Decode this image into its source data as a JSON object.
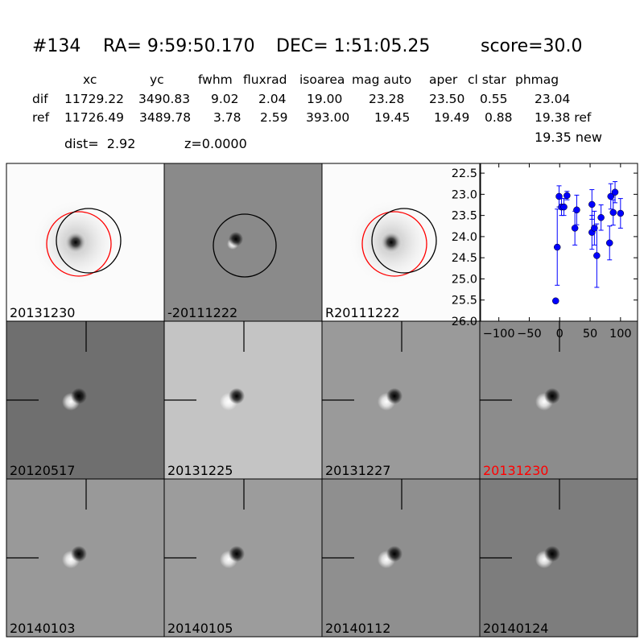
{
  "header": {
    "id": "#134",
    "ra": "RA= 9:59:50.170",
    "dec": "DEC= 1:51:05.25",
    "score": "score=30.0"
  },
  "table": {
    "columns": [
      "xc",
      "yc",
      "fwhm",
      "fluxrad",
      "isoarea",
      "mag auto",
      "aper",
      "cl star",
      "phmag"
    ],
    "rows": [
      {
        "name": "dif",
        "values": [
          "11729.22",
          "3490.83",
          "9.02",
          "2.04",
          "19.00",
          "23.28",
          "23.50",
          "0.55",
          "23.04"
        ]
      },
      {
        "name": "ref",
        "values": [
          "11726.49",
          "3489.78",
          "3.78",
          "2.59",
          "393.00",
          "19.45",
          "19.49",
          "0.88",
          "19.38 ref"
        ]
      }
    ],
    "new_phmag": "19.35 new"
  },
  "info": {
    "dist": "dist=  2.92",
    "z": "z=0.0000"
  },
  "panels": [
    {
      "label": "20131230"
    },
    {
      "label": "-20111222"
    },
    {
      "label": "R20111222"
    },
    {
      "label": "20120517"
    },
    {
      "label": "20131225"
    },
    {
      "label": "20131227"
    },
    {
      "label": "20131230",
      "label_color": "#ff0000"
    },
    {
      "label": "20140103"
    },
    {
      "label": "20140105"
    },
    {
      "label": "20140112"
    },
    {
      "label": "20140124"
    }
  ],
  "chart_data": {
    "type": "errorbar",
    "x": [
      -6.6,
      -4,
      -1,
      3,
      7,
      12,
      25,
      28,
      53,
      53,
      57,
      61,
      68,
      82,
      84,
      88,
      91,
      100
    ],
    "values": [
      25.52,
      24.25,
      23.05,
      23.3,
      23.3,
      23.03,
      23.8,
      23.37,
      23.24,
      23.9,
      23.8,
      24.45,
      23.55,
      24.15,
      23.05,
      23.43,
      22.95,
      23.45
    ],
    "errors": [
      0.05,
      0.9,
      0.25,
      0.2,
      0.2,
      0.1,
      0.4,
      0.35,
      0.35,
      0.4,
      0.4,
      0.75,
      0.3,
      0.4,
      0.3,
      0.3,
      0.25,
      0.35
    ],
    "color": "#0000ff",
    "xlim": [
      -130,
      128
    ],
    "ylim": [
      22.27,
      26.0
    ],
    "y_inverted": true,
    "xticks": [
      {
        "value": -100,
        "label": "−100"
      },
      {
        "value": -50,
        "label": "−50"
      },
      0,
      50,
      100
    ],
    "yticks": [
      22.5,
      {
        "value": 23,
        "label": "23.0"
      },
      23.5,
      {
        "value": 24,
        "label": "24.0"
      },
      24.5,
      {
        "value": 25,
        "label": "25.0"
      },
      25.5,
      {
        "value": 26,
        "label": "26.0"
      }
    ]
  }
}
